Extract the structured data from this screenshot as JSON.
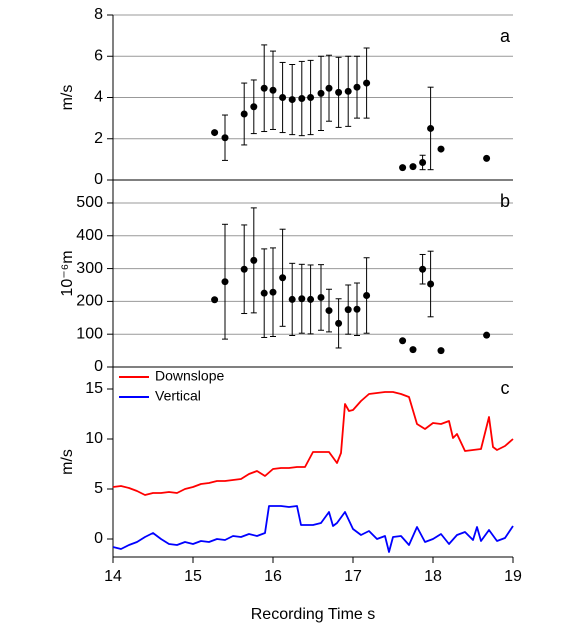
{
  "chart_data": [
    {
      "type": "scatter",
      "annotation": "a",
      "ylabel": "m/s",
      "xlim": [
        14,
        19
      ],
      "ylim": [
        0,
        8
      ],
      "yticks": [
        0,
        2,
        4,
        6,
        8
      ],
      "grid": true,
      "series": [
        {
          "color": "#000000",
          "x": [
            15.27,
            15.4,
            15.64,
            15.76,
            15.89,
            16.0,
            16.12,
            16.24,
            16.36,
            16.47,
            16.6,
            16.7,
            16.82,
            16.94,
            17.05,
            17.17,
            17.62,
            17.75,
            17.87,
            17.97,
            18.1,
            18.67
          ],
          "values": [
            2.3,
            2.05,
            3.2,
            3.55,
            4.45,
            4.35,
            4.0,
            3.9,
            3.95,
            4.0,
            4.2,
            4.45,
            4.25,
            4.3,
            4.5,
            4.7,
            0.6,
            0.65,
            0.85,
            2.5,
            1.5,
            1.05
          ],
          "errors": [
            null,
            1.1,
            1.5,
            1.3,
            2.1,
            1.9,
            1.7,
            1.7,
            1.8,
            1.8,
            1.8,
            1.6,
            1.7,
            1.7,
            1.5,
            1.7,
            null,
            null,
            0.35,
            2.0,
            null,
            null
          ]
        }
      ]
    },
    {
      "type": "scatter",
      "annotation": "b",
      "ylabel": "10⁻⁶m",
      "xlim": [
        14,
        19
      ],
      "ylim": [
        0,
        570
      ],
      "yticks": [
        0,
        100,
        200,
        300,
        400,
        500
      ],
      "grid": true,
      "series": [
        {
          "color": "#000000",
          "x": [
            15.27,
            15.4,
            15.64,
            15.76,
            15.89,
            16.0,
            16.12,
            16.24,
            16.36,
            16.47,
            16.6,
            16.7,
            16.82,
            16.94,
            17.05,
            17.17,
            17.62,
            17.75,
            17.87,
            17.97,
            18.1,
            18.67
          ],
          "values": [
            205,
            260,
            298,
            325,
            225,
            228,
            272,
            206,
            208,
            206,
            212,
            172,
            133,
            175,
            176,
            218,
            80,
            53,
            298,
            253,
            50,
            97
          ],
          "errors": [
            null,
            175,
            135,
            160,
            135,
            135,
            148,
            110,
            105,
            105,
            100,
            65,
            75,
            75,
            80,
            115,
            null,
            null,
            45,
            100,
            null,
            null
          ]
        }
      ]
    },
    {
      "type": "line",
      "annotation": "c",
      "ylabel": "m/s",
      "xlabel": "Recording Time  s",
      "xlim": [
        14,
        19
      ],
      "xticks": [
        14,
        15,
        16,
        17,
        18,
        19
      ],
      "ylim": [
        -1.8,
        17.2
      ],
      "yticks": [
        0,
        5,
        10,
        15
      ],
      "grid": false,
      "legend": "upper-left",
      "series": [
        {
          "name": "Downslope",
          "color": "#ff0000",
          "x": [
            14.0,
            14.1,
            14.2,
            14.3,
            14.4,
            14.5,
            14.6,
            14.7,
            14.8,
            14.9,
            15.0,
            15.1,
            15.2,
            15.3,
            15.4,
            15.5,
            15.6,
            15.7,
            15.8,
            15.9,
            16.0,
            16.1,
            16.2,
            16.3,
            16.4,
            16.5,
            16.6,
            16.7,
            16.8,
            16.85,
            16.9,
            16.95,
            17.0,
            17.1,
            17.2,
            17.3,
            17.4,
            17.5,
            17.6,
            17.7,
            17.8,
            17.9,
            18.0,
            18.1,
            18.2,
            18.25,
            18.3,
            18.4,
            18.5,
            18.6,
            18.7,
            18.75,
            18.8,
            18.9,
            19.0
          ],
          "values": [
            5.2,
            5.3,
            5.1,
            4.8,
            4.4,
            4.6,
            4.6,
            4.7,
            4.6,
            5.0,
            5.2,
            5.5,
            5.6,
            5.8,
            5.8,
            5.9,
            6.0,
            6.5,
            6.8,
            6.3,
            7.0,
            7.1,
            7.1,
            7.2,
            7.2,
            8.7,
            8.7,
            8.7,
            7.6,
            8.6,
            13.5,
            12.8,
            12.9,
            13.8,
            14.5,
            14.6,
            14.7,
            14.7,
            14.5,
            14.2,
            11.5,
            11.0,
            11.6,
            11.5,
            11.8,
            10.1,
            10.5,
            8.8,
            8.9,
            9.0,
            12.2,
            9.2,
            8.9,
            9.3,
            10.0
          ]
        },
        {
          "name": "Vertical",
          "color": "#0000ff",
          "x": [
            14.0,
            14.1,
            14.2,
            14.3,
            14.4,
            14.5,
            14.6,
            14.7,
            14.8,
            14.9,
            15.0,
            15.1,
            15.2,
            15.3,
            15.4,
            15.5,
            15.6,
            15.7,
            15.8,
            15.9,
            15.95,
            16.0,
            16.1,
            16.2,
            16.3,
            16.35,
            16.5,
            16.6,
            16.7,
            16.75,
            16.8,
            16.9,
            17.0,
            17.1,
            17.2,
            17.3,
            17.4,
            17.45,
            17.5,
            17.6,
            17.7,
            17.8,
            17.9,
            18.0,
            18.1,
            18.2,
            18.3,
            18.4,
            18.5,
            18.55,
            18.6,
            18.7,
            18.8,
            18.9,
            19.0
          ],
          "values": [
            -0.8,
            -1.0,
            -0.6,
            -0.3,
            0.2,
            0.6,
            0.0,
            -0.5,
            -0.6,
            -0.3,
            -0.5,
            -0.2,
            -0.3,
            0.0,
            -0.1,
            0.3,
            0.2,
            0.5,
            0.3,
            0.6,
            3.3,
            3.3,
            3.3,
            3.2,
            3.3,
            1.4,
            1.4,
            1.6,
            2.7,
            1.3,
            1.6,
            2.7,
            1.0,
            0.4,
            0.8,
            0.0,
            0.3,
            -1.3,
            0.2,
            0.3,
            -0.6,
            1.2,
            -0.3,
            0.0,
            0.5,
            -0.5,
            0.4,
            0.7,
            -0.1,
            1.2,
            -0.2,
            0.9,
            -0.2,
            0.1,
            1.3
          ]
        }
      ]
    }
  ]
}
